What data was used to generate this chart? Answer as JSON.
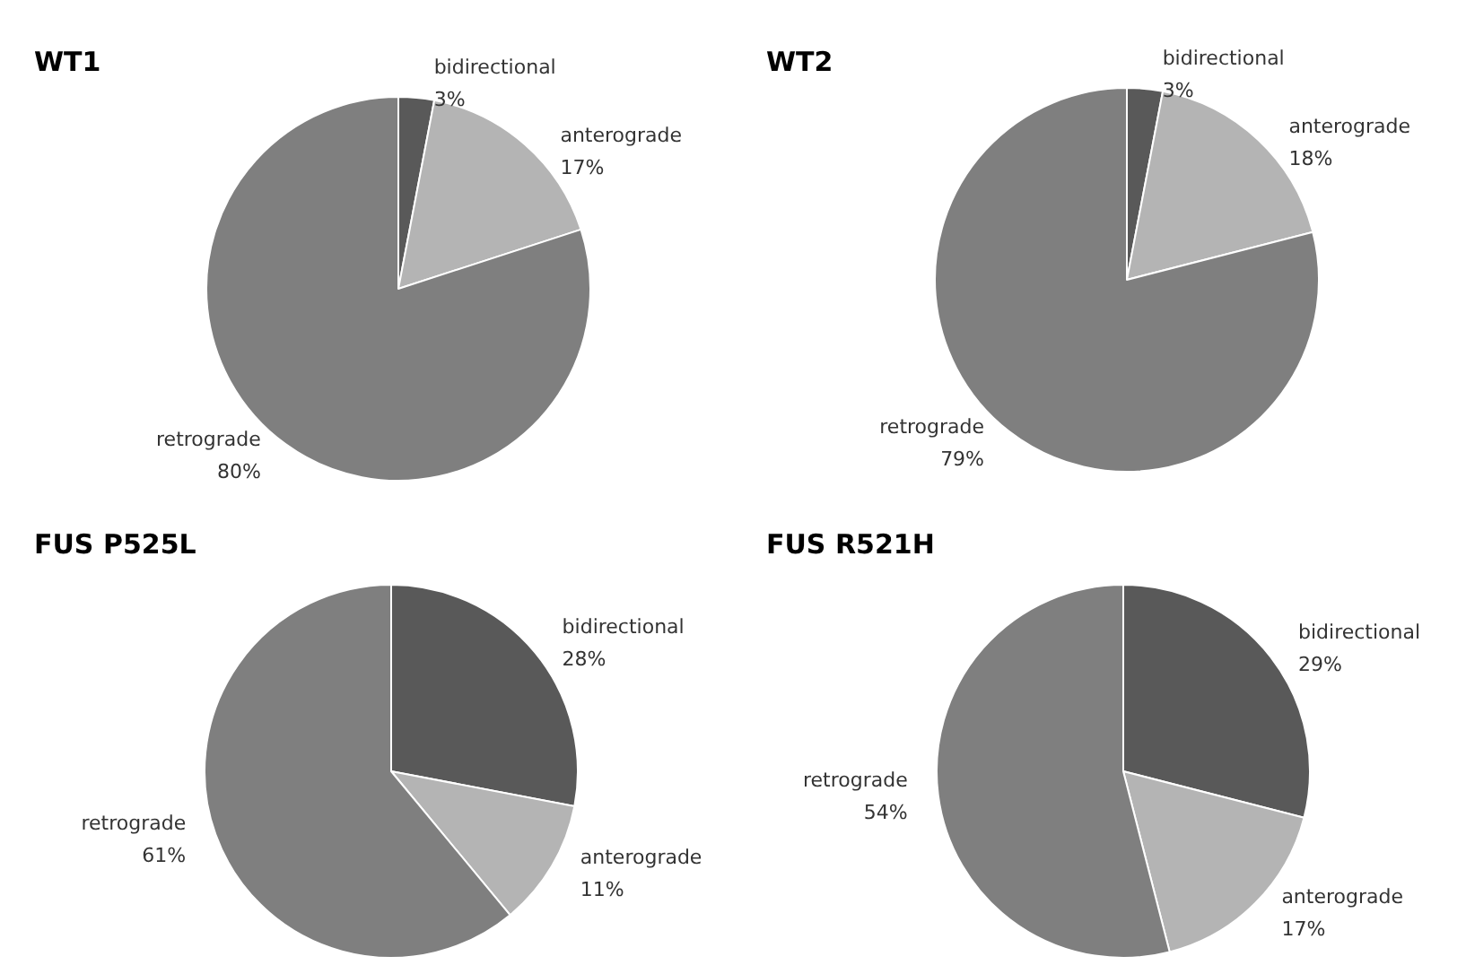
{
  "chart_data": [
    {
      "type": "pie",
      "title": "WT1",
      "categories": [
        "bidirectional",
        "anterograde",
        "retrograde"
      ],
      "values": [
        3,
        17,
        80
      ],
      "value_labels": [
        "3%",
        "17%",
        "80%"
      ],
      "colors": [
        "#595959",
        "#b4b4b4",
        "#7f7f7f"
      ],
      "legend": false
    },
    {
      "type": "pie",
      "title": "WT2",
      "categories": [
        "bidirectional",
        "anterograde",
        "retrograde"
      ],
      "values": [
        3,
        18,
        79
      ],
      "value_labels": [
        "3%",
        "18%",
        "79%"
      ],
      "colors": [
        "#595959",
        "#b4b4b4",
        "#7f7f7f"
      ],
      "legend": false
    },
    {
      "type": "pie",
      "title": "FUS P525L",
      "categories": [
        "bidirectional",
        "anterograde",
        "retrograde"
      ],
      "values": [
        28,
        11,
        61
      ],
      "value_labels": [
        "28%",
        "11%",
        "61%"
      ],
      "colors": [
        "#595959",
        "#b4b4b4",
        "#7f7f7f"
      ],
      "legend": false
    },
    {
      "type": "pie",
      "title": "FUS R521H",
      "categories": [
        "bidirectional",
        "anterograde",
        "retrograde"
      ],
      "values": [
        29,
        17,
        54
      ],
      "value_labels": [
        "29%",
        "17%",
        "54%"
      ],
      "colors": [
        "#595959",
        "#b4b4b4",
        "#7f7f7f"
      ],
      "legend": false
    }
  ]
}
